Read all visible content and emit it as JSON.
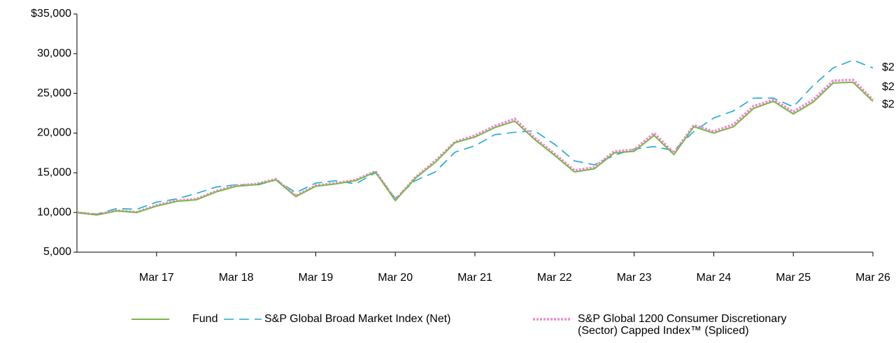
{
  "chart_data": {
    "type": "line",
    "categories": [
      null,
      null,
      null,
      null,
      "Mar 17",
      null,
      null,
      null,
      "Mar 18",
      null,
      null,
      null,
      "Mar 19",
      null,
      null,
      null,
      "Mar 20",
      null,
      null,
      null,
      "Mar 21",
      null,
      null,
      null,
      "Mar 22",
      null,
      null,
      null,
      "Mar 23",
      null,
      null,
      null,
      "Mar 24",
      null,
      null,
      null,
      "Mar 25",
      null,
      null,
      null,
      "Mar 26"
    ],
    "series": [
      {
        "name": "Fund",
        "color": "#7ab648",
        "style": "solid",
        "values": [
          10000,
          9700,
          10200,
          10000,
          10800,
          11400,
          11600,
          12600,
          13300,
          13500,
          14100,
          12000,
          13300,
          13600,
          14000,
          15100,
          11500,
          14300,
          16300,
          18800,
          19500,
          20700,
          21500,
          19200,
          17200,
          15100,
          15500,
          17500,
          17700,
          19700,
          17300,
          20800,
          20000,
          20800,
          23100,
          24000,
          22400,
          23900,
          26300,
          26400,
          24000
        ]
      },
      {
        "name": "S&P Global Broad Market Index (Net)",
        "color": "#1ea7d6",
        "style": "dashed",
        "values": [
          10000,
          9800,
          10500,
          10400,
          11300,
          11700,
          12400,
          13200,
          13500,
          13400,
          14100,
          12500,
          13700,
          14000,
          13600,
          15000,
          11800,
          14000,
          15100,
          17600,
          18400,
          19800,
          20100,
          20300,
          18600,
          16500,
          16000,
          17200,
          18000,
          18300,
          17800,
          20200,
          21900,
          22800,
          24400,
          24400,
          23300,
          26000,
          28200,
          29200,
          28200
        ]
      },
      {
        "name": "S&P Global 1200 Consumer Discretionary (Sector) Capped Index™ (Spliced)",
        "color": "#f08bd0",
        "style": "dotted",
        "values": [
          10000,
          9750,
          10250,
          10050,
          10900,
          11500,
          11700,
          12700,
          13400,
          13600,
          14200,
          12100,
          13400,
          13700,
          14100,
          15200,
          11600,
          14400,
          16500,
          18900,
          19700,
          20900,
          21800,
          19400,
          17400,
          15300,
          15700,
          17700,
          17900,
          20000,
          17500,
          21000,
          20200,
          21100,
          23400,
          24200,
          22700,
          24200,
          26600,
          26700,
          24200
        ]
      }
    ],
    "annotations": [
      "$2",
      "$2",
      "$2"
    ],
    "ylim": [
      5000,
      35000
    ],
    "yticks": [
      {
        "value": 5000,
        "label": "5,000"
      },
      {
        "value": 10000,
        "label": "10,000"
      },
      {
        "value": 15000,
        "label": "15,000"
      },
      {
        "value": 20000,
        "label": "20,000"
      },
      {
        "value": 25000,
        "label": "25,000"
      },
      {
        "value": 30000,
        "label": "30,000"
      },
      {
        "value": 35000,
        "label": "$35,000"
      }
    ]
  }
}
